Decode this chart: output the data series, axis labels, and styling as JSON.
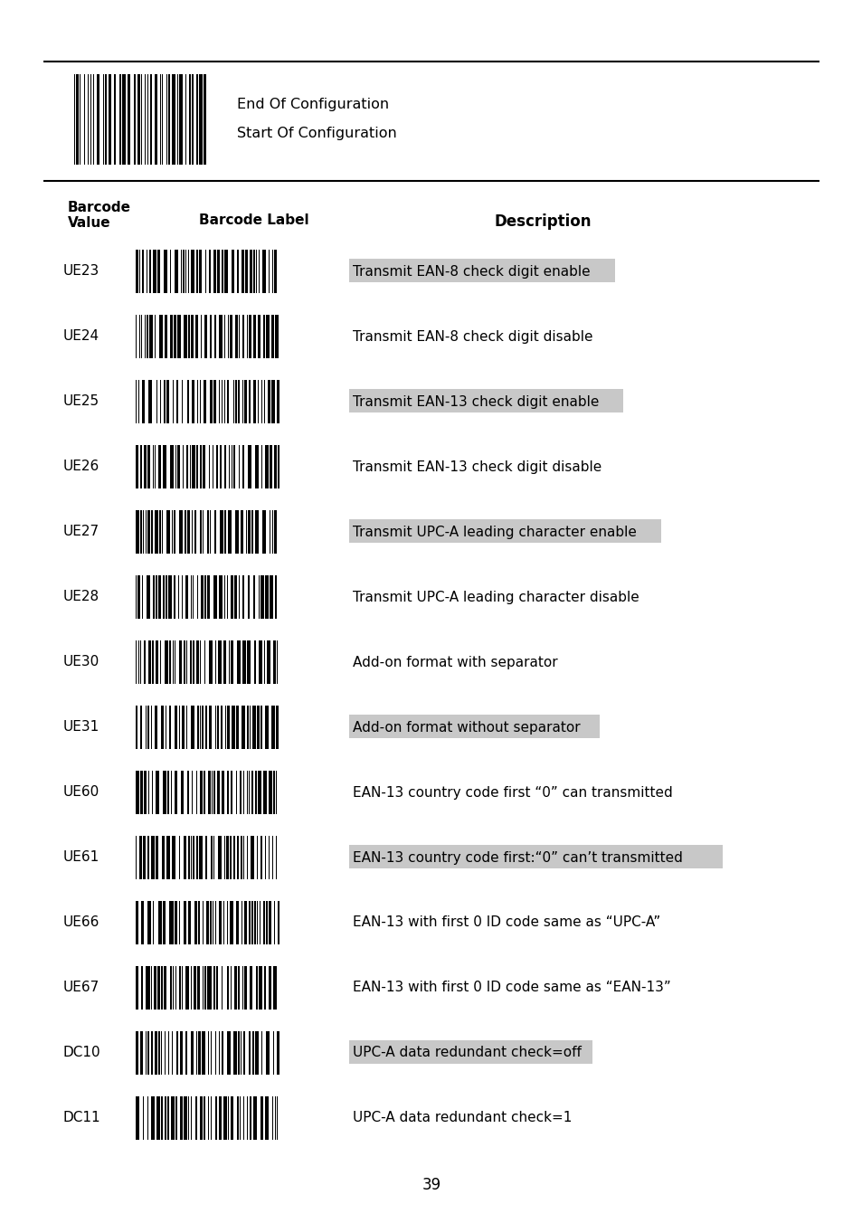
{
  "page_number": "39",
  "top_barcode_text": [
    "End Of Configuration",
    "Start Of Configuration"
  ],
  "header_col1": "Barcode\nValue",
  "header_col2": "Barcode Label",
  "header_col3": "Description",
  "rows": [
    {
      "code": "UE23",
      "desc": "Transmit EAN-8 check digit enable",
      "highlight": true
    },
    {
      "code": "UE24",
      "desc": "Transmit EAN-8 check digit disable",
      "highlight": false
    },
    {
      "code": "UE25",
      "desc": "Transmit EAN-13 check digit enable",
      "highlight": true
    },
    {
      "code": "UE26",
      "desc": "Transmit EAN-13 check digit disable",
      "highlight": false
    },
    {
      "code": "UE27",
      "desc": "Transmit UPC-A leading character enable",
      "highlight": true
    },
    {
      "code": "UE28",
      "desc": "Transmit UPC-A leading character disable",
      "highlight": false
    },
    {
      "code": "UE30",
      "desc": "Add-on format with separator",
      "highlight": false
    },
    {
      "code": "UE31",
      "desc": "Add-on format without separator",
      "highlight": true
    },
    {
      "code": "UE60",
      "desc": "EAN-13 country code first “0” can transmitted",
      "highlight": false
    },
    {
      "code": "UE61",
      "desc": "EAN-13 country code first:“0” can’t transmitted",
      "highlight": true
    },
    {
      "code": "UE66",
      "desc": "EAN-13 with first 0 ID code same as “UPC-A”",
      "highlight": false
    },
    {
      "code": "UE67",
      "desc": "EAN-13 with first 0 ID code same as “EAN-13”",
      "highlight": false
    },
    {
      "code": "DC10",
      "desc": "UPC-A data redundant check=off",
      "highlight": true
    },
    {
      "code": "DC11",
      "desc": "UPC-A data redundant check=1",
      "highlight": false
    }
  ],
  "highlight_color": "#c8c8c8",
  "bg_color": "#ffffff",
  "text_color": "#000000",
  "line_color": "#000000"
}
